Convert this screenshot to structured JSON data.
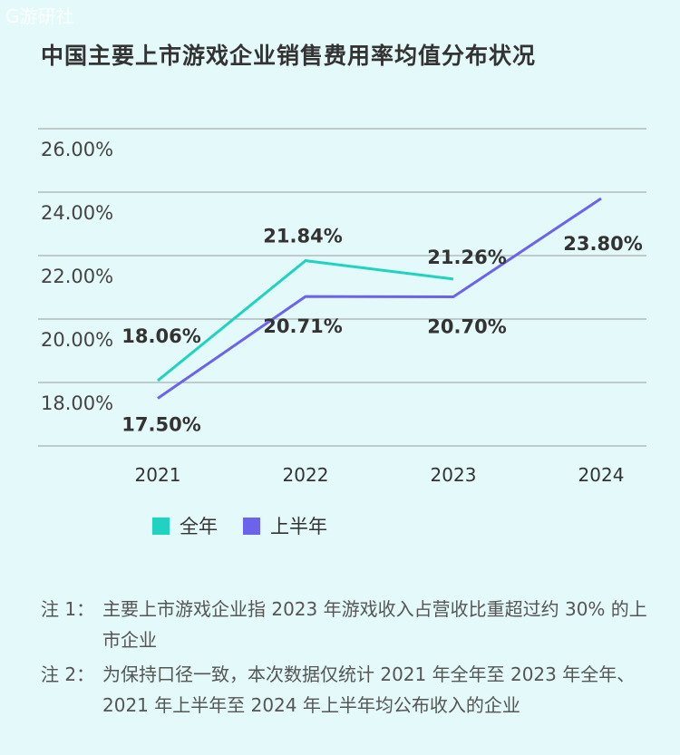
{
  "watermark": "G游研社",
  "title": "中国主要上市游戏企业销售费用率均值分布状况",
  "chart_data": {
    "type": "line",
    "title": "中国主要上市游戏企业销售费用率均值分布状况",
    "categories": [
      "2021",
      "2022",
      "2023",
      "2024"
    ],
    "y_ticks": [
      "26.00%",
      "24.00%",
      "22.00%",
      "20.00%",
      "18.00%"
    ],
    "ylim": [
      16,
      26
    ],
    "grid": true,
    "legend_position": "bottom",
    "series": [
      {
        "name": "全年",
        "color": "#1fd3c0",
        "values": [
          18.06,
          21.84,
          21.26,
          null
        ],
        "labels": [
          "18.06%",
          "21.84%",
          "21.26%",
          ""
        ]
      },
      {
        "name": "上半年",
        "color": "#6b63ec",
        "values": [
          17.5,
          20.71,
          20.7,
          23.8
        ],
        "labels": [
          "17.50%",
          "20.71%",
          "20.70%",
          "23.80%"
        ]
      }
    ]
  },
  "notes": [
    {
      "label": "注 1：",
      "text": "主要上市游戏企业指 2023 年游戏收入占营收比重超过约 30% 的上市企业"
    },
    {
      "label": "注 2：",
      "text": "为保持口径一致，本次数据仅统计 2021 年全年至 2023 年全年、2021 年上半年至 2024 年上半年均公布收入的企业"
    }
  ]
}
